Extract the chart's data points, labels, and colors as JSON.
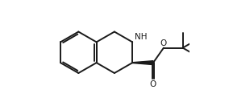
{
  "bg_color": "#ffffff",
  "line_color": "#1a1a1a",
  "line_width": 1.4,
  "fig_width": 2.84,
  "fig_height": 1.32,
  "dpi": 100,
  "BL": 1.38,
  "junc_x": 3.8,
  "junc_y_4a": 2.85,
  "NH_fontsize": 7.5,
  "O_fontsize": 7.5,
  "xlim": [
    0,
    10
  ],
  "ylim": [
    0,
    7
  ]
}
